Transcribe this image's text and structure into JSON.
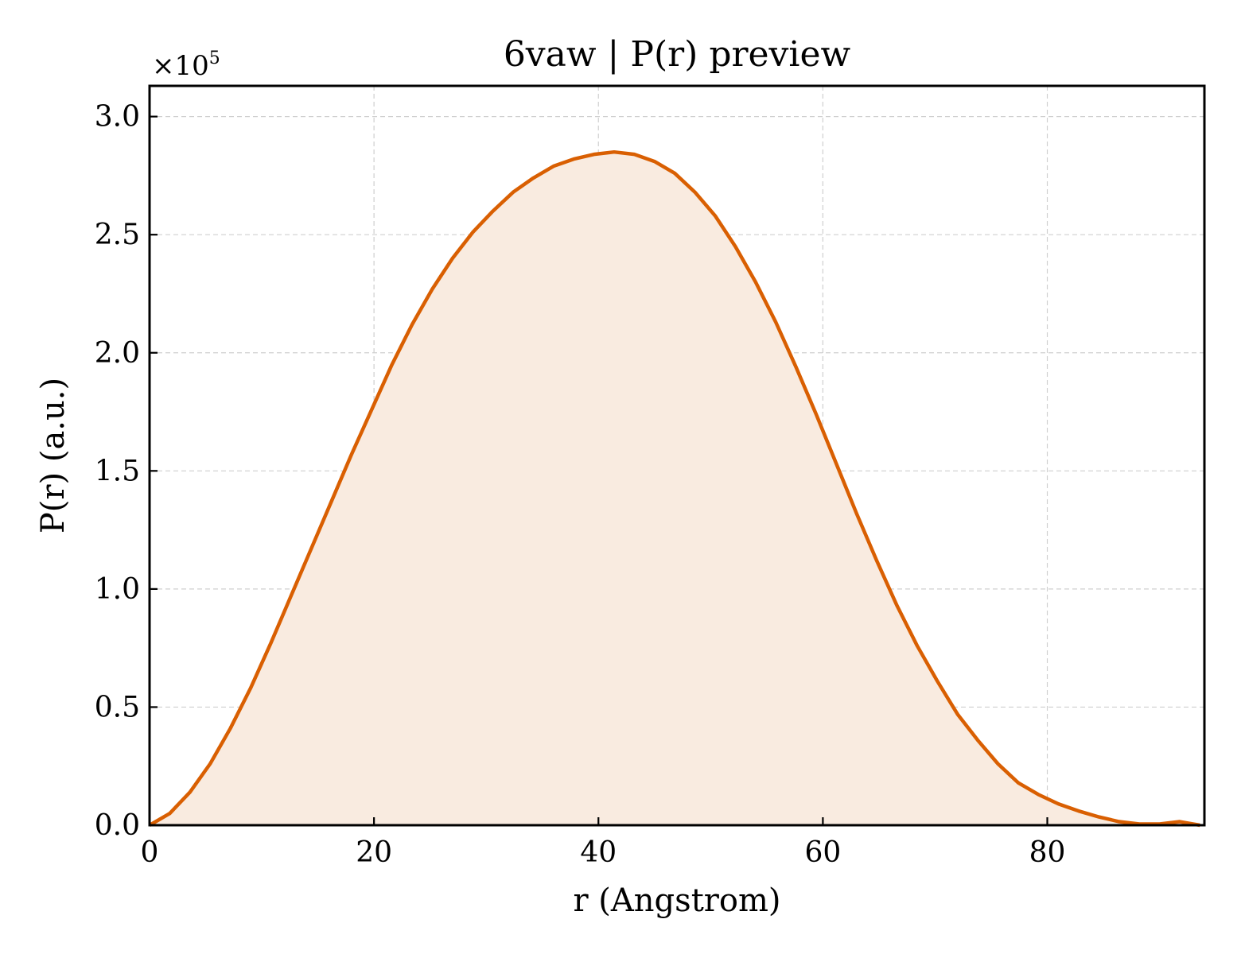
{
  "chart_data": {
    "type": "area",
    "title": "6vaw | P(r) preview",
    "xlabel": "r (Angstrom)",
    "ylabel": "P(r) (a.u.)",
    "y_scale_note": "×10",
    "y_scale_exponent": "5",
    "xlim": [
      0,
      94
    ],
    "ylim": [
      0,
      3.13
    ],
    "xticks": [
      0,
      20,
      40,
      60,
      80
    ],
    "xtick_labels": [
      "0",
      "20",
      "40",
      "60",
      "80"
    ],
    "yticks": [
      0,
      0.5,
      1.0,
      1.5,
      2.0,
      2.5,
      3.0
    ],
    "ytick_labels": [
      "0.0",
      "0.5",
      "1.0",
      "1.5",
      "2.0",
      "2.5",
      "3.0"
    ],
    "grid": true,
    "line_color": "#d95f02",
    "fill_color": "#f9ebe0",
    "series": [
      {
        "x": [
          0,
          1.8,
          3.6,
          5.4,
          7.2,
          9.0,
          10.8,
          12.6,
          14.4,
          16.2,
          18.0,
          19.8,
          21.6,
          23.4,
          25.2,
          27.0,
          28.8,
          30.6,
          32.4,
          34.2,
          36.0,
          37.8,
          39.6,
          41.4,
          43.2,
          45.0,
          46.8,
          48.6,
          50.4,
          52.2,
          54.0,
          55.8,
          57.6,
          59.4,
          61.2,
          63.0,
          64.8,
          66.6,
          68.4,
          70.2,
          72.0,
          73.8,
          75.6,
          77.4,
          79.2,
          81.0,
          82.8,
          84.6,
          86.4,
          88.2,
          90.0,
          91.8,
          93.6
        ],
        "y": [
          0.0,
          0.05,
          0.14,
          0.26,
          0.41,
          0.58,
          0.77,
          0.97,
          1.17,
          1.37,
          1.57,
          1.76,
          1.95,
          2.12,
          2.27,
          2.4,
          2.51,
          2.6,
          2.68,
          2.74,
          2.79,
          2.82,
          2.84,
          2.85,
          2.84,
          2.81,
          2.76,
          2.68,
          2.58,
          2.45,
          2.3,
          2.13,
          1.94,
          1.74,
          1.53,
          1.32,
          1.12,
          0.93,
          0.76,
          0.61,
          0.47,
          0.36,
          0.26,
          0.18,
          0.13,
          0.09,
          0.06,
          0.035,
          0.015,
          0.005,
          0.005,
          0.015,
          0.0
        ]
      }
    ]
  }
}
